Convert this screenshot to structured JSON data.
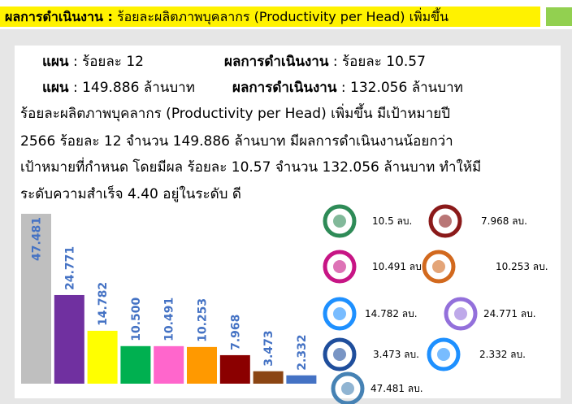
{
  "header": {
    "bold": "ผลการดำเนินงาน :",
    "rest": "ร้อยละผลิตภาพบุคลากร (Productivity per Head) เพิ่มขึ้น"
  },
  "plan_rows": [
    [
      {
        "label": "แผน",
        "text": ": ร้อยละ 12"
      },
      {
        "label": "ผลการดำเนินงาน",
        "text": ": ร้อยละ 10.57"
      }
    ],
    [
      {
        "label": "แผน",
        "text": ": 149.886  ล้านบาท"
      },
      {
        "label": "ผลการดำเนินงาน",
        "text": ": 132.056 ล้านบาท"
      }
    ]
  ],
  "paragraph": [
    "ร้อยละผลิตภาพบุคลากร (Productivity per Head) เพิ่มขึ้น มีเป้าหมายปี",
    "2566  ร้อยละ 12 จำนวน 149.886 ล้านบาท มีผลการดำเนินงานน้อยกว่า",
    "เป้าหมายที่กำหนด โดยมีผล ร้อยละ 10.57 จำนวน 132.056 ล้านบาท ทำให้มี",
    "ระดับความสำเร็จ 4.40 อยู่ในระดับ ดี"
  ],
  "chart_data": {
    "type": "bar",
    "values": [
      47.481,
      24.771,
      14.782,
      10.5,
      10.491,
      10.253,
      7.968,
      3.473,
      2.332
    ],
    "value_labels": [
      "47.481",
      "24.771",
      "14.782",
      "10.500",
      "10.491",
      "10.253",
      "7.968",
      "3.473",
      "2.332"
    ],
    "colors": [
      "#bfbfbf",
      "#7030a0",
      "#ffff00",
      "#00b050",
      "#ff66cc",
      "#ff9900",
      "#8b0000",
      "#8b4513",
      "#4472c4"
    ],
    "label_color": "#4472c4"
  },
  "logos": [
    "10.5 ลบ.",
    "7.968 ลบ.",
    "10.491 ลบ.",
    "10.253 ลบ.",
    "14.782 ลบ.",
    "24.771 ลบ.",
    "3.473 ลบ.",
    "2.332 ลบ.",
    "47.481 ลบ."
  ]
}
